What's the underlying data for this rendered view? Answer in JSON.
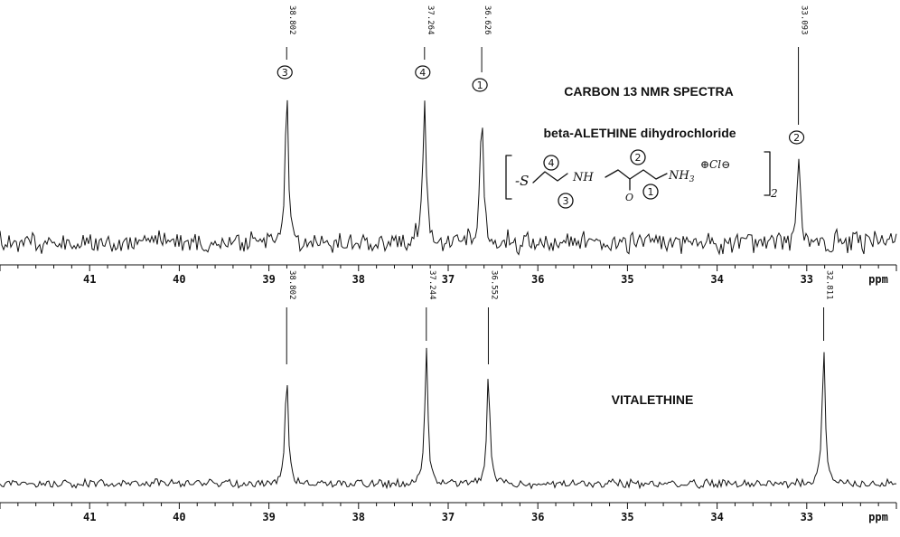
{
  "title": "CARBON 13 NMR SPECTRA",
  "subtitle": "beta-ALETHINE dihydrochloride",
  "structure": {
    "prefix": "-S",
    "nh": "NH",
    "o": "O",
    "nh3": "NH",
    "nh3_sub": "3",
    "counter": "⊕Cl⊖",
    "count": "2",
    "carbon_labels": [
      "4",
      "3",
      "2",
      "1"
    ]
  },
  "chart_data": [
    {
      "type": "line",
      "title": "CARBON 13 NMR SPECTRA",
      "subtitle": "beta-ALETHINE dihydrochloride",
      "xlabel": "ppm",
      "xlim": [
        42.0,
        32.0
      ],
      "xticks": [
        41,
        40,
        39,
        38,
        37,
        36,
        35,
        34,
        33
      ],
      "peaks": [
        {
          "ppm": 38.802,
          "label": "38.802",
          "carbon": "3",
          "height": 0.86
        },
        {
          "ppm": 37.264,
          "label": "37.264",
          "carbon": "4",
          "height": 0.86
        },
        {
          "ppm": 36.626,
          "label": "36.626",
          "carbon": "1",
          "height": 0.79
        },
        {
          "ppm": 33.093,
          "label": "33.093",
          "carbon": "2",
          "height": 0.5
        }
      ]
    },
    {
      "type": "line",
      "title": "VITALETHINE",
      "xlabel": "ppm",
      "xlim": [
        42.0,
        32.0
      ],
      "xticks": [
        41,
        40,
        39,
        38,
        37,
        36,
        35,
        34,
        33
      ],
      "peaks": [
        {
          "ppm": 38.802,
          "label": "38.802",
          "height": 0.62
        },
        {
          "ppm": 37.244,
          "label": "37.244",
          "height": 0.75
        },
        {
          "ppm": 36.552,
          "label": "36.552",
          "height": 0.62
        },
        {
          "ppm": 32.811,
          "label": "32.811",
          "height": 0.75
        }
      ]
    }
  ]
}
